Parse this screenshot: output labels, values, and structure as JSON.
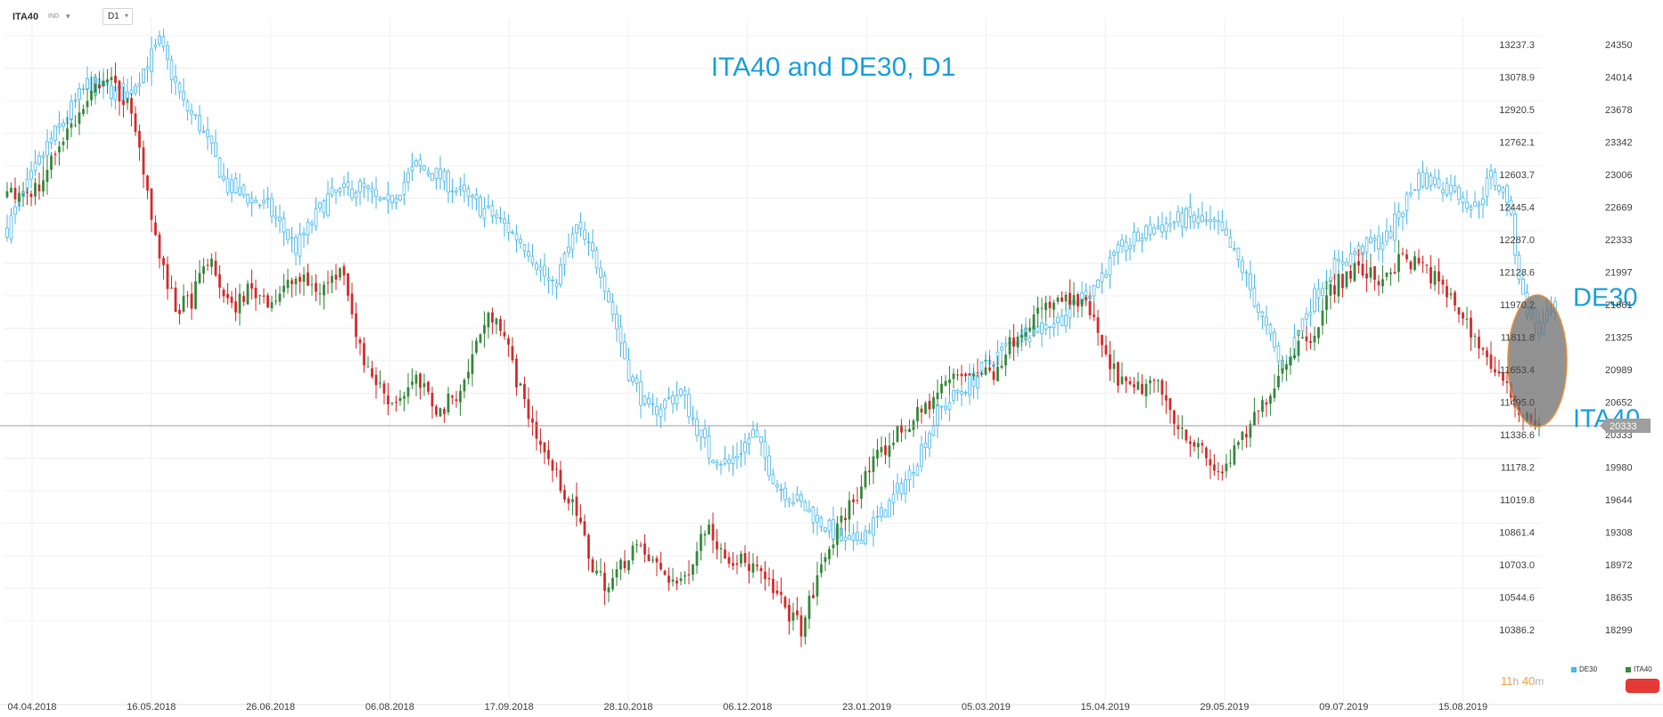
{
  "toolbar": {
    "symbol": "ITA40",
    "symbol_type": "IND",
    "timeframe": "D1"
  },
  "chart_data": {
    "type": "candlestick",
    "title": "ITA40 and DE30, D1",
    "x_tick_labels": [
      "04.04.2018",
      "16.05.2018",
      "26.06.2018",
      "06.08.2018",
      "17.09.2018",
      "28.10.2018",
      "06.12.2018",
      "23.01.2019",
      "05.03.2019",
      "15.04.2019",
      "29.05.2019",
      "09.07.2019",
      "15.08.2019"
    ],
    "y_left_ticks": [
      13237.3,
      13078.9,
      12920.5,
      12762.1,
      12603.7,
      12445.4,
      12287.0,
      12128.6,
      11970.2,
      11811.8,
      11653.4,
      11495.0,
      11336.6,
      11178.2,
      11019.8,
      10861.4,
      10703.0,
      10544.6,
      10386.2
    ],
    "y_right_ticks": [
      24350,
      24014,
      23678,
      23342,
      23006,
      22669,
      22333,
      21997,
      21661,
      21325,
      20989,
      20652,
      20333,
      19980,
      19644,
      19308,
      18972,
      18635,
      18299
    ],
    "current_price_label": "20333",
    "current_price": 20333,
    "series": [
      {
        "name": "DE30",
        "style": "hollow",
        "color": "#4cb9e7",
        "key_points": [
          [
            0,
            12300
          ],
          [
            10,
            12700
          ],
          [
            20,
            13000
          ],
          [
            30,
            12950
          ],
          [
            38,
            13200
          ],
          [
            44,
            12900
          ],
          [
            48,
            12800
          ],
          [
            55,
            12500
          ],
          [
            65,
            12400
          ],
          [
            72,
            12200
          ],
          [
            80,
            12450
          ],
          [
            88,
            12500
          ],
          [
            94,
            12400
          ],
          [
            102,
            12600
          ],
          [
            108,
            12550
          ],
          [
            114,
            12450
          ],
          [
            122,
            12350
          ],
          [
            130,
            12200
          ],
          [
            136,
            12000
          ],
          [
            142,
            12300
          ],
          [
            148,
            12100
          ],
          [
            155,
            11600
          ],
          [
            160,
            11400
          ],
          [
            168,
            11500
          ],
          [
            175,
            11200
          ],
          [
            180,
            11150
          ],
          [
            186,
            11300
          ],
          [
            192,
            11050
          ],
          [
            198,
            10950
          ],
          [
            204,
            10850
          ],
          [
            210,
            10750
          ],
          [
            218,
            10900
          ],
          [
            225,
            11100
          ],
          [
            232,
            11400
          ],
          [
            240,
            11550
          ],
          [
            248,
            11700
          ],
          [
            254,
            11800
          ],
          [
            262,
            11850
          ],
          [
            270,
            12000
          ],
          [
            278,
            12200
          ],
          [
            286,
            12300
          ],
          [
            294,
            12350
          ],
          [
            302,
            12300
          ],
          [
            308,
            12100
          ],
          [
            314,
            11800
          ],
          [
            318,
            11600
          ],
          [
            324,
            11900
          ],
          [
            330,
            12100
          ],
          [
            338,
            12200
          ],
          [
            344,
            12250
          ],
          [
            352,
            12550
          ],
          [
            360,
            12500
          ],
          [
            366,
            12400
          ],
          [
            370,
            12550
          ],
          [
            374,
            12450
          ],
          [
            378,
            11950
          ],
          [
            382,
            11800
          ],
          [
            386,
            11900
          ]
        ]
      },
      {
        "name": "ITA40",
        "style": "filled",
        "up_color": "#3a8a3e",
        "down_color": "#d32f2f",
        "key_points": [
          [
            0,
            12450
          ],
          [
            8,
            12500
          ],
          [
            14,
            12750
          ],
          [
            20,
            12900
          ],
          [
            24,
            13050
          ],
          [
            30,
            12900
          ],
          [
            34,
            12600
          ],
          [
            38,
            12150
          ],
          [
            42,
            11900
          ],
          [
            46,
            11950
          ],
          [
            50,
            12150
          ],
          [
            56,
            11900
          ],
          [
            60,
            12000
          ],
          [
            66,
            11950
          ],
          [
            72,
            12050
          ],
          [
            78,
            12000
          ],
          [
            84,
            12100
          ],
          [
            88,
            11700
          ],
          [
            92,
            11550
          ],
          [
            96,
            11450
          ],
          [
            102,
            11550
          ],
          [
            108,
            11400
          ],
          [
            114,
            11550
          ],
          [
            118,
            11800
          ],
          [
            122,
            11900
          ],
          [
            128,
            11500
          ],
          [
            134,
            11200
          ],
          [
            138,
            11050
          ],
          [
            142,
            10900
          ],
          [
            146,
            10650
          ],
          [
            150,
            10550
          ],
          [
            156,
            10750
          ],
          [
            162,
            10650
          ],
          [
            168,
            10550
          ],
          [
            174,
            10850
          ],
          [
            180,
            10700
          ],
          [
            186,
            10650
          ],
          [
            190,
            10550
          ],
          [
            194,
            10450
          ],
          [
            198,
            10350
          ],
          [
            204,
            10700
          ],
          [
            210,
            10950
          ],
          [
            216,
            11150
          ],
          [
            222,
            11300
          ],
          [
            228,
            11400
          ],
          [
            234,
            11550
          ],
          [
            240,
            11600
          ],
          [
            246,
            11600
          ],
          [
            252,
            11800
          ],
          [
            258,
            11900
          ],
          [
            264,
            11950
          ],
          [
            270,
            11900
          ],
          [
            274,
            11650
          ],
          [
            280,
            11500
          ],
          [
            286,
            11550
          ],
          [
            292,
            11350
          ],
          [
            298,
            11200
          ],
          [
            302,
            11100
          ],
          [
            306,
            11200
          ],
          [
            312,
            11400
          ],
          [
            316,
            11550
          ],
          [
            320,
            11700
          ],
          [
            326,
            11800
          ],
          [
            330,
            12000
          ],
          [
            336,
            12100
          ],
          [
            342,
            12050
          ],
          [
            348,
            12150
          ],
          [
            354,
            12100
          ],
          [
            358,
            12000
          ],
          [
            362,
            11900
          ],
          [
            368,
            11700
          ],
          [
            374,
            11500
          ],
          [
            378,
            11400
          ],
          [
            382,
            11350
          ]
        ]
      }
    ],
    "annotations": [
      {
        "text": "DE30"
      },
      {
        "text": "ITA40"
      }
    ],
    "grid": true
  },
  "legend": [
    {
      "label": "DE30",
      "color": "#4cb9e7"
    },
    {
      "label": "ITA40",
      "color": "#3a8a3e"
    }
  ],
  "timer": {
    "hours": "11",
    "h_unit": "h",
    "minutes": "40",
    "m_unit": "m"
  }
}
